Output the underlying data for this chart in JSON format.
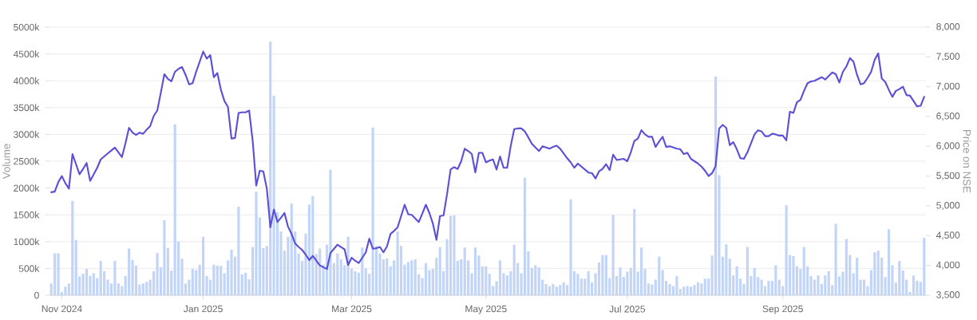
{
  "chart_data": {
    "type": "bar",
    "ylabel": "Volume",
    "y2label": "Price on NSE",
    "grid": "y",
    "categories": [
      null,
      null,
      null,
      "Nov 2024",
      null,
      null,
      null,
      null,
      null,
      null,
      null,
      null,
      null,
      null,
      null,
      null,
      null,
      null,
      null,
      null,
      null,
      null,
      null,
      null,
      null,
      null,
      null,
      null,
      null,
      null,
      null,
      null,
      null,
      null,
      null,
      null,
      null,
      null,
      null,
      null,
      null,
      null,
      null,
      "Jan 2025",
      null,
      null,
      null,
      null,
      null,
      null,
      null,
      null,
      null,
      null,
      null,
      null,
      null,
      null,
      null,
      null,
      null,
      null,
      null,
      null,
      null,
      null,
      null,
      null,
      null,
      null,
      null,
      null,
      null,
      null,
      null,
      null,
      null,
      null,
      null,
      null,
      null,
      null,
      null,
      null,
      null,
      "Mar 2025",
      null,
      null,
      null,
      null,
      null,
      null,
      null,
      null,
      null,
      null,
      null,
      null,
      null,
      null,
      null,
      null,
      null,
      null,
      null,
      null,
      null,
      null,
      null,
      null,
      null,
      null,
      null,
      null,
      null,
      null,
      null,
      null,
      null,
      null,
      null,
      null,
      null,
      "May 2025",
      null,
      null,
      null,
      null,
      null,
      null,
      null,
      null,
      null,
      null,
      null,
      null,
      null,
      null,
      null,
      null,
      null,
      null,
      null,
      null,
      null,
      null,
      null,
      null,
      null,
      null,
      null,
      null,
      null,
      null,
      null,
      null,
      null,
      null,
      null,
      null,
      null,
      null,
      null,
      "Jul 2025",
      null,
      null,
      null,
      null,
      null,
      null,
      null,
      null,
      null,
      null,
      null,
      null,
      null,
      null,
      null,
      null,
      null,
      null,
      null,
      null,
      null,
      null,
      null,
      null,
      null,
      null,
      null,
      null,
      null,
      null,
      null,
      null,
      null,
      null,
      null,
      null,
      null,
      null,
      null,
      null,
      null,
      null,
      null,
      "Sep 2025",
      null,
      null,
      null,
      null,
      null,
      null,
      null,
      null,
      null,
      null,
      null,
      null,
      null,
      null,
      null,
      null,
      null,
      null,
      null,
      null,
      null,
      null,
      null,
      null,
      null,
      null,
      null,
      null,
      null,
      null,
      null,
      null,
      null,
      null,
      null,
      null,
      null,
      null,
      null,
      null
    ],
    "ylim": [
      0,
      5000
    ],
    "yticks": [
      0,
      {
        "value": 500,
        "label": "500k"
      },
      {
        "value": 1000,
        "label": "1000k"
      },
      {
        "value": 1500,
        "label": "1500k"
      },
      {
        "value": 2000,
        "label": "2000k"
      },
      {
        "value": 2500,
        "label": "2500k"
      },
      {
        "value": 3000,
        "label": "3000k"
      },
      {
        "value": 3500,
        "label": "3500k"
      },
      {
        "value": 4000,
        "label": "4000k"
      },
      {
        "value": 4500,
        "label": "4500k"
      },
      {
        "value": 5000,
        "label": "5000k"
      }
    ],
    "y2lim": [
      3500,
      8000
    ],
    "y2ticks": [
      {
        "value": 3500,
        "label": "3,500"
      },
      {
        "value": 4000,
        "label": "4,000"
      },
      {
        "value": 4500,
        "label": "4,500"
      },
      {
        "value": 5000,
        "label": "5,000"
      },
      {
        "value": 5500,
        "label": "5,500"
      },
      {
        "value": 6000,
        "label": "6,000"
      },
      {
        "value": 6500,
        "label": "6,500"
      },
      {
        "value": 7000,
        "label": "7,000"
      },
      {
        "value": 7500,
        "label": "7,500"
      },
      {
        "value": 8000,
        "label": "8,000"
      }
    ],
    "series": [
      {
        "color": "#c3d5f7",
        "values": [
          220,
          780,
          780,
          60,
          160,
          220,
          1760,
          1030,
          350,
          400,
          490,
          360,
          410,
          320,
          640,
          450,
          290,
          220,
          640,
          220,
          170,
          360,
          870,
          660,
          550,
          200,
          220,
          250,
          290,
          450,
          790,
          520,
          1400,
          880,
          460,
          3190,
          1000,
          680,
          220,
          290,
          490,
          470,
          570,
          1090,
          360,
          290,
          570,
          550,
          550,
          410,
          650,
          850,
          720,
          1650,
          390,
          420,
          300,
          900,
          1930,
          1450,
          880,
          920,
          4730,
          3720,
          1550,
          1190,
          830,
          1090,
          1710,
          1190,
          780,
          640,
          1150,
          1690,
          1850,
          770,
          870,
          570,
          940,
          2340,
          600,
          780,
          670,
          560,
          1090,
          500,
          450,
          420,
          890,
          500,
          400,
          3130,
          920,
          780,
          670,
          690,
          540,
          650,
          1190,
          920,
          570,
          620,
          650,
          670,
          390,
          320,
          600,
          470,
          490,
          700,
          900,
          450,
          1050,
          1480,
          1490,
          640,
          670,
          890,
          650,
          410,
          890,
          740,
          540,
          540,
          400,
          170,
          260,
          650,
          410,
          370,
          450,
          940,
          600,
          410,
          2190,
          820,
          510,
          560,
          520,
          290,
          210,
          170,
          210,
          160,
          190,
          240,
          190,
          1790,
          450,
          400,
          310,
          310,
          450,
          240,
          410,
          610,
          750,
          750,
          320,
          1500,
          360,
          520,
          340,
          440,
          510,
          1610,
          440,
          890,
          490,
          220,
          200,
          290,
          720,
          470,
          270,
          210,
          170,
          360,
          120,
          160,
          170,
          160,
          190,
          240,
          220,
          310,
          310,
          740,
          4080,
          2240,
          720,
          950,
          680,
          370,
          540,
          310,
          210,
          900,
          360,
          510,
          340,
          290,
          170,
          270,
          270,
          560,
          290,
          170,
          1680,
          750,
          730,
          540,
          490,
          900,
          540,
          360,
          290,
          370,
          210,
          370,
          450,
          190,
          1330,
          350,
          440,
          1050,
          750,
          410,
          700,
          290,
          290,
          170,
          470,
          800,
          830,
          700,
          340,
          1230,
          560,
          240,
          640,
          460,
          290,
          60,
          370,
          270,
          250,
          1070
        ]
      },
      {
        "type": "line",
        "axis": "y2",
        "color": "#5b50d6",
        "values": [
          5230,
          5240,
          5400,
          5500,
          5380,
          5290,
          5870,
          5700,
          5530,
          5620,
          5720,
          5420,
          5530,
          5640,
          5780,
          5830,
          5880,
          5930,
          5980,
          5900,
          5820,
          6050,
          6310,
          6230,
          6190,
          6230,
          6210,
          6280,
          6340,
          6510,
          6600,
          6900,
          7210,
          7130,
          7090,
          7250,
          7300,
          7330,
          7200,
          7040,
          7060,
          7250,
          7420,
          7590,
          7470,
          7530,
          7160,
          7230,
          6950,
          6760,
          6660,
          6130,
          6140,
          6560,
          6570,
          6570,
          6600,
          6090,
          5340,
          5590,
          5580,
          5290,
          4640,
          4940,
          4730,
          4800,
          4880,
          4650,
          4530,
          4370,
          4310,
          4260,
          4180,
          4090,
          4160,
          4080,
          4000,
          3970,
          3940,
          4210,
          4280,
          4350,
          4310,
          4270,
          4010,
          4130,
          4080,
          4040,
          4130,
          4220,
          4450,
          4280,
          4290,
          4310,
          4220,
          4320,
          4530,
          4580,
          4640,
          4830,
          5020,
          4860,
          4850,
          4790,
          4730,
          4870,
          5020,
          4880,
          4700,
          4430,
          4830,
          4840,
          5200,
          5610,
          5650,
          5620,
          5750,
          5960,
          5920,
          5870,
          5560,
          5890,
          5890,
          5730,
          5760,
          5780,
          5610,
          5830,
          5640,
          5640,
          6000,
          6290,
          6300,
          6300,
          6250,
          6150,
          6040,
          5980,
          5920,
          6000,
          5980,
          5960,
          5990,
          6010,
          5960,
          5880,
          5800,
          5730,
          5640,
          5710,
          5660,
          5610,
          5560,
          5550,
          5460,
          5580,
          5620,
          5700,
          5600,
          5860,
          5770,
          5780,
          5790,
          5750,
          5900,
          6090,
          6130,
          6270,
          6200,
          6160,
          6160,
          5990,
          6080,
          6160,
          5990,
          6000,
          5980,
          5960,
          5950,
          5870,
          5890,
          5790,
          5750,
          5710,
          5660,
          5590,
          5500,
          5550,
          5670,
          6300,
          6360,
          6310,
          6020,
          6070,
          5950,
          5800,
          5790,
          5900,
          6050,
          6200,
          6270,
          6250,
          6170,
          6170,
          6210,
          6200,
          6180,
          6180,
          6100,
          6580,
          6560,
          6740,
          6780,
          6930,
          7060,
          7090,
          7100,
          7130,
          7160,
          7120,
          7180,
          7240,
          7210,
          7070,
          7250,
          7340,
          7480,
          7420,
          7200,
          7040,
          7060,
          7150,
          7250,
          7450,
          7560,
          7140,
          7080,
          6950,
          6830,
          6930,
          6960,
          7000,
          6860,
          6850,
          6760,
          6670,
          6680,
          6830
        ]
      }
    ]
  }
}
